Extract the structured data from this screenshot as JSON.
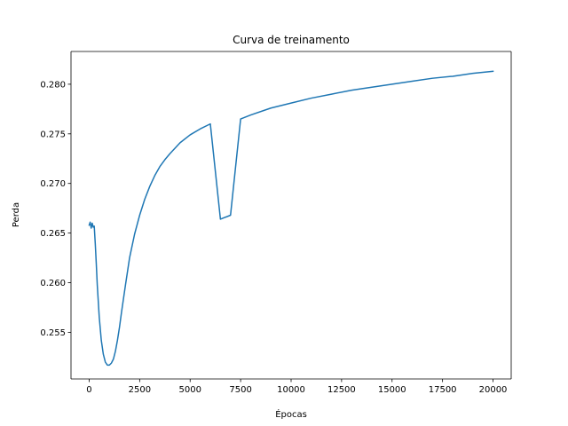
{
  "chart_data": {
    "type": "line",
    "title": "Curva de treinamento",
    "xlabel": "Épocas",
    "ylabel": "Perda",
    "xlim": [
      -900,
      20900
    ],
    "ylim": [
      0.2503,
      0.2833
    ],
    "grid": false,
    "x_ticks": [
      0,
      2500,
      5000,
      7500,
      10000,
      12500,
      15000,
      17500,
      20000
    ],
    "x_tick_labels": [
      "0",
      "2500",
      "5000",
      "7500",
      "10000",
      "12500",
      "15000",
      "17500",
      "20000"
    ],
    "y_ticks": [
      0.255,
      0.26,
      0.265,
      0.27,
      0.275,
      0.28
    ],
    "y_tick_labels": [
      "0.255",
      "0.260",
      "0.265",
      "0.270",
      "0.275",
      "0.280"
    ],
    "series": [
      {
        "color": "#1f77b4",
        "x": [
          0,
          50,
          100,
          150,
          200,
          250,
          300,
          350,
          400,
          500,
          600,
          700,
          800,
          900,
          1000,
          1100,
          1200,
          1300,
          1400,
          1500,
          1600,
          1800,
          2000,
          2250,
          2500,
          2750,
          3000,
          3250,
          3500,
          3750,
          4000,
          4500,
          5000,
          5500,
          6000,
          6500,
          7000,
          7500,
          8000,
          9000,
          10000,
          11000,
          12000,
          13000,
          14000,
          15000,
          16000,
          17000,
          18000,
          19000,
          20000
        ],
        "y": [
          0.2658,
          0.2661,
          0.2655,
          0.266,
          0.2656,
          0.2657,
          0.264,
          0.262,
          0.2598,
          0.2565,
          0.2542,
          0.2528,
          0.252,
          0.2517,
          0.2517,
          0.2519,
          0.2523,
          0.2531,
          0.2542,
          0.2555,
          0.257,
          0.2598,
          0.2625,
          0.2649,
          0.2668,
          0.2684,
          0.2697,
          0.2708,
          0.2717,
          0.2724,
          0.273,
          0.2741,
          0.2749,
          0.2755,
          0.276,
          0.2664,
          0.2668,
          0.2765,
          0.2769,
          0.2776,
          0.2781,
          0.2786,
          0.279,
          0.2794,
          0.2797,
          0.28,
          0.2803,
          0.2806,
          0.2808,
          0.2811,
          0.2813
        ]
      }
    ]
  }
}
